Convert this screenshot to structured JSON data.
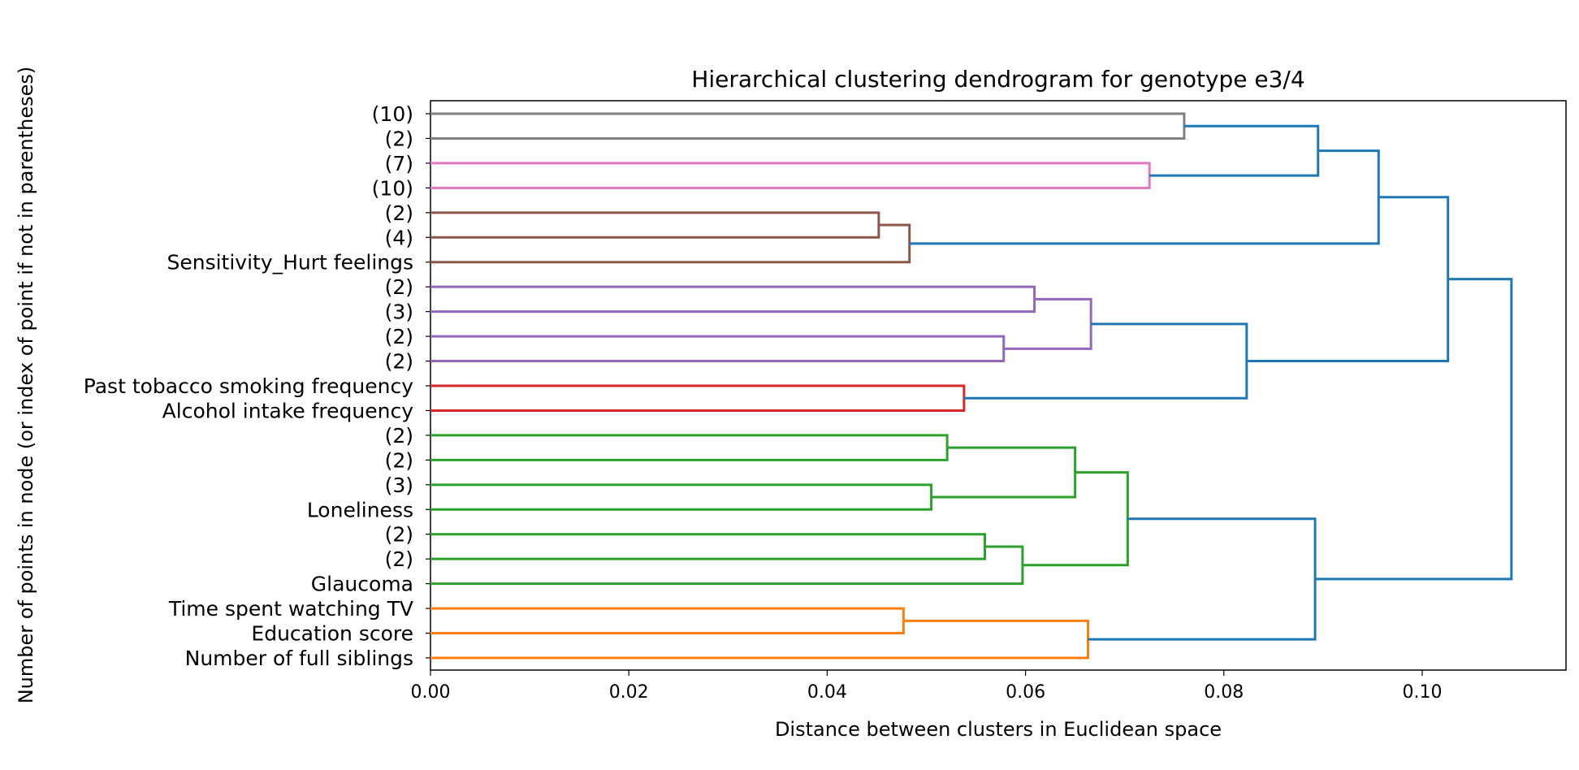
{
  "chart_data": {
    "type": "dendrogram",
    "orientation": "horizontal",
    "title": "Hierarchical clustering dendrogram for genotype e3/4",
    "xlabel": "Distance between clusters in Euclidean space",
    "ylabel": "Number of points in node (or index of point if not in parentheses)",
    "xlim": [
      0,
      0.1145
    ],
    "xticks": [
      "0.00",
      "0.02",
      "0.04",
      "0.06",
      "0.08",
      "0.10"
    ],
    "xtick_values": [
      0,
      0.02,
      0.04,
      0.06,
      0.08,
      0.1
    ],
    "leaves": [
      "(10)",
      "(2)",
      "(7)",
      "(10)",
      "(2)",
      "(4)",
      "Sensitivity_Hurt feelings",
      "(2)",
      "(3)",
      "(2)",
      "(2)",
      "Past tobacco smoking frequency",
      "Alcohol intake frequency",
      "(2)",
      "(2)",
      "(3)",
      "Loneliness",
      "(2)",
      "(2)",
      "Glaucoma",
      "Time spent watching TV",
      "Education score",
      "Number of full siblings"
    ],
    "colors": {
      "gray": "#7f7f7f",
      "pink": "#e377c2",
      "brown": "#8c564b",
      "purple": "#9467bd",
      "red": "#d62728",
      "green": "#2ca02c",
      "orange": "#ff7f0e",
      "above_threshold": "#1f77b4"
    },
    "merges": [
      {
        "a": 0,
        "b": 1,
        "distance": 0.076,
        "color": "gray"
      },
      {
        "a": 2,
        "b": 3,
        "distance": 0.0725,
        "color": "pink"
      },
      {
        "a": 4,
        "b": 5,
        "distance": 0.0452,
        "color": "brown"
      },
      {
        "a": 24,
        "b": 6,
        "distance": 0.0483,
        "color": "brown"
      },
      {
        "a": 7,
        "b": 8,
        "distance": 0.0609,
        "color": "purple"
      },
      {
        "a": 9,
        "b": 10,
        "distance": 0.0578,
        "color": "purple"
      },
      {
        "a": 26,
        "b": 27,
        "distance": 0.0666,
        "color": "purple"
      },
      {
        "a": 11,
        "b": 12,
        "distance": 0.0538,
        "color": "red"
      },
      {
        "a": 13,
        "b": 14,
        "distance": 0.0521,
        "color": "green"
      },
      {
        "a": 15,
        "b": 16,
        "distance": 0.0505,
        "color": "green"
      },
      {
        "a": 30,
        "b": 31,
        "distance": 0.065,
        "color": "green"
      },
      {
        "a": 17,
        "b": 18,
        "distance": 0.0559,
        "color": "green"
      },
      {
        "a": 33,
        "b": 19,
        "distance": 0.0597,
        "color": "green"
      },
      {
        "a": 32,
        "b": 34,
        "distance": 0.0703,
        "color": "green"
      },
      {
        "a": 20,
        "b": 21,
        "distance": 0.0477,
        "color": "orange"
      },
      {
        "a": 36,
        "b": 22,
        "distance": 0.0663,
        "color": "orange"
      },
      {
        "a": 23,
        "b": 22,
        "distance": 0.0895,
        "color": "above_threshold",
        "ref": "23=gray pair,22=pink pair"
      },
      {
        "a": 38,
        "b": 25,
        "distance": 0.0956,
        "color": "above_threshold"
      },
      {
        "a": 28,
        "b": 29,
        "distance": 0.0823,
        "color": "above_threshold"
      },
      {
        "a": 39,
        "b": 40,
        "distance": 0.1026,
        "color": "above_threshold"
      },
      {
        "a": 35,
        "b": 37,
        "distance": 0.0892,
        "color": "above_threshold"
      },
      {
        "a": 41,
        "b": 42,
        "distance": 0.109,
        "color": "above_threshold"
      }
    ]
  }
}
